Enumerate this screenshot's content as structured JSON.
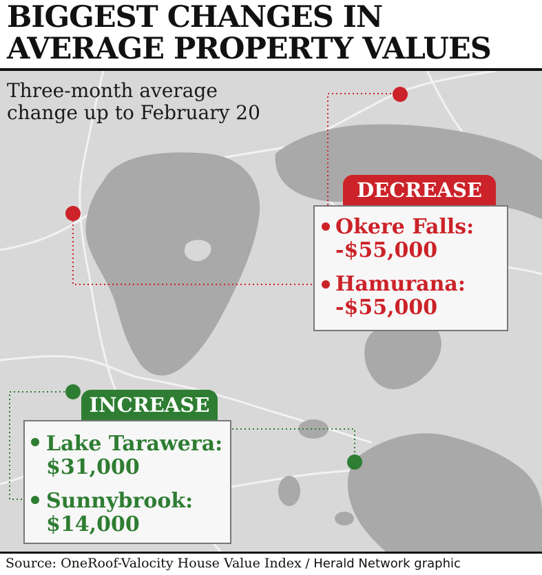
{
  "title": {
    "line1": "BIGGEST CHANGES IN",
    "line2": "AVERAGE PROPERTY VALUES"
  },
  "subtitle": {
    "line1": "Three-month average",
    "line2": "change up to February 20"
  },
  "decrease": {
    "label": "DECREASE",
    "color": "#cc2229",
    "entries": [
      {
        "place": "Okere Falls:",
        "value": "-$55,000"
      },
      {
        "place": "Hamurana:",
        "value": "-$55,000"
      }
    ]
  },
  "increase": {
    "label": "INCREASE",
    "color": "#2e7d32",
    "entries": [
      {
        "place": "Lake Tarawera:",
        "value": "$31,000"
      },
      {
        "place": "Sunnybrook:",
        "value": "$14,000"
      }
    ]
  },
  "source": {
    "bold": "Source: OneRoof-Valocity House Value Index",
    "rest": " / Herald Network graphic"
  },
  "colors": {
    "map_land": "#d8d8d8",
    "map_water": "#a9a9a9",
    "roads": "#f2f2f2"
  }
}
